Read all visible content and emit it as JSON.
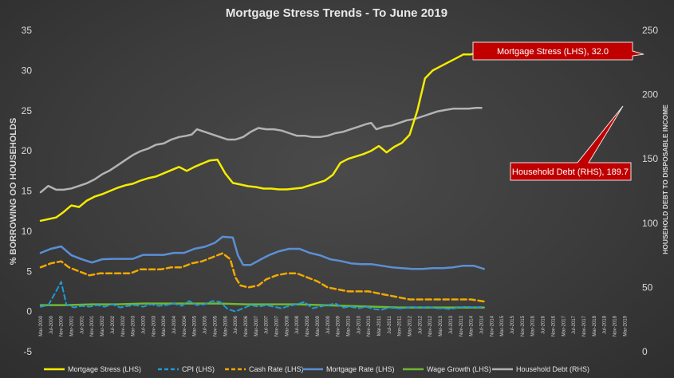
{
  "chart_data": {
    "type": "line",
    "title": "Mortgage Stress Trends - To June 2019",
    "ylabel": "% BORROWING OO HOUSEHOLDS",
    "y2label": "HOUSEHOLD DEBT TO DISPOSABLE INCOME",
    "ylim": [
      -5,
      35
    ],
    "yticks": [
      -5,
      0,
      5,
      10,
      15,
      20,
      25,
      30,
      35
    ],
    "y2lim": [
      0,
      250
    ],
    "y2ticks": [
      0,
      50,
      100,
      150,
      200,
      250
    ],
    "x_start": "Mar-2000",
    "x_end": "Jun-2019",
    "x_tick_labels": [
      "Mar-2000",
      "Jul-2000",
      "Nov-2000",
      "Mar-2001",
      "Jul-2001",
      "Nov-2001",
      "Mar-2002",
      "Jul-2002",
      "Nov-2002",
      "Mar-2003",
      "Jul-2003",
      "Nov-2003",
      "Mar-2004",
      "Jul-2004",
      "Nov-2004",
      "Mar-2005",
      "Jul-2005",
      "Nov-2005",
      "Mar-2006",
      "Jul-2006",
      "Nov-2006",
      "Mar-2007",
      "Jul-2007",
      "Nov-2007",
      "Mar-2008",
      "Jul-2008",
      "Nov-2008",
      "Mar-2009",
      "Jul-2009",
      "Nov-2009",
      "Mar-2010",
      "Jul-2010",
      "Nov-2010",
      "Mar-2011",
      "Jul-2011",
      "Nov-2011",
      "Mar-2012",
      "Jul-2012",
      "Nov-2012",
      "Mar-2013",
      "Jul-2013",
      "Nov-2013",
      "Mar-2014",
      "Jul-2014",
      "Nov-2014",
      "Mar-2015",
      "Jul-2015",
      "Nov-2015",
      "Mar-2016",
      "Jul-2016",
      "Nov-2016",
      "Mar-2017",
      "Jul-2017",
      "Nov-2017",
      "Mar-2018",
      "Jul-2018",
      "Nov-2018",
      "Mar-2019"
    ],
    "series": [
      {
        "name": "Mortgage Stress (LHS)",
        "axis": "left",
        "color": "#f5ec00",
        "dash": "solid",
        "width": 2.5,
        "points": [
          [
            0,
            11.3
          ],
          [
            3,
            11.5
          ],
          [
            6,
            11.7
          ],
          [
            9,
            12.4
          ],
          [
            12,
            13.2
          ],
          [
            15,
            13.0
          ],
          [
            18,
            13.8
          ],
          [
            21,
            14.3
          ],
          [
            24,
            14.6
          ],
          [
            27,
            15.0
          ],
          [
            30,
            15.4
          ],
          [
            33,
            15.7
          ],
          [
            36,
            15.9
          ],
          [
            39,
            16.3
          ],
          [
            42,
            16.6
          ],
          [
            45,
            16.8
          ],
          [
            48,
            17.2
          ],
          [
            51,
            17.6
          ],
          [
            54,
            18.0
          ],
          [
            57,
            17.5
          ],
          [
            60,
            18.0
          ],
          [
            63,
            18.4
          ],
          [
            66,
            18.8
          ],
          [
            69,
            18.9
          ],
          [
            72,
            17.2
          ],
          [
            75,
            16.0
          ],
          [
            78,
            15.8
          ],
          [
            81,
            15.6
          ],
          [
            84,
            15.5
          ],
          [
            87,
            15.3
          ],
          [
            90,
            15.3
          ],
          [
            93,
            15.2
          ],
          [
            96,
            15.2
          ],
          [
            99,
            15.3
          ],
          [
            102,
            15.4
          ],
          [
            105,
            15.7
          ],
          [
            108,
            16.0
          ],
          [
            111,
            16.3
          ],
          [
            114,
            17.0
          ],
          [
            117,
            18.5
          ],
          [
            120,
            19.0
          ],
          [
            123,
            19.3
          ],
          [
            126,
            19.6
          ],
          [
            129,
            20.0
          ],
          [
            132,
            20.6
          ],
          [
            135,
            19.8
          ],
          [
            138,
            20.5
          ],
          [
            141,
            21.0
          ],
          [
            144,
            22.0
          ],
          [
            147,
            25.0
          ],
          [
            150,
            29.0
          ],
          [
            153,
            30.0
          ],
          [
            156,
            30.5
          ],
          [
            159,
            31.0
          ],
          [
            162,
            31.5
          ],
          [
            165,
            32.0
          ],
          [
            168,
            32.0
          ],
          [
            171,
            32.3
          ],
          [
            173,
            32.0
          ]
        ]
      },
      {
        "name": "CPI (LHS)",
        "axis": "left",
        "color": "#1e9ad6",
        "dash": "6,4",
        "width": 2,
        "points": [
          [
            0,
            0.6
          ],
          [
            3,
            0.8
          ],
          [
            6,
            2.5
          ],
          [
            8,
            3.7
          ],
          [
            10,
            0.9
          ],
          [
            13,
            0.5
          ],
          [
            16,
            0.7
          ],
          [
            19,
            0.6
          ],
          [
            22,
            0.8
          ],
          [
            25,
            0.6
          ],
          [
            28,
            0.9
          ],
          [
            31,
            0.5
          ],
          [
            34,
            0.7
          ],
          [
            37,
            0.8
          ],
          [
            40,
            0.6
          ],
          [
            43,
            0.9
          ],
          [
            46,
            0.7
          ],
          [
            49,
            0.8
          ],
          [
            52,
            1.0
          ],
          [
            55,
            0.7
          ],
          [
            58,
            1.3
          ],
          [
            61,
            0.8
          ],
          [
            64,
            0.9
          ],
          [
            67,
            1.3
          ],
          [
            70,
            1.2
          ],
          [
            73,
            0.3
          ],
          [
            76,
            0.0
          ],
          [
            79,
            0.4
          ],
          [
            82,
            0.8
          ],
          [
            85,
            0.6
          ],
          [
            88,
            0.8
          ],
          [
            91,
            0.6
          ],
          [
            94,
            0.4
          ],
          [
            97,
            0.7
          ],
          [
            100,
            0.9
          ],
          [
            103,
            1.2
          ],
          [
            106,
            0.4
          ],
          [
            109,
            0.6
          ],
          [
            112,
            0.8
          ],
          [
            115,
            1.0
          ],
          [
            118,
            0.5
          ],
          [
            121,
            0.6
          ],
          [
            124,
            0.4
          ],
          [
            127,
            0.6
          ],
          [
            130,
            0.3
          ],
          [
            133,
            0.2
          ],
          [
            136,
            0.5
          ],
          [
            139,
            0.4
          ],
          [
            142,
            0.4
          ],
          [
            145,
            0.6
          ],
          [
            148,
            0.4
          ],
          [
            151,
            0.6
          ],
          [
            154,
            0.4
          ],
          [
            157,
            0.4
          ],
          [
            160,
            0.3
          ],
          [
            163,
            0.5
          ],
          [
            166,
            0.6
          ],
          [
            169,
            0.5
          ],
          [
            173,
            0.6
          ]
        ]
      },
      {
        "name": "Cash Rate (LHS)",
        "axis": "left",
        "color": "#f2a900",
        "dash": "7,4",
        "width": 2.5,
        "points": [
          [
            0,
            5.5
          ],
          [
            4,
            6.0
          ],
          [
            8,
            6.25
          ],
          [
            11,
            5.5
          ],
          [
            15,
            5.0
          ],
          [
            19,
            4.5
          ],
          [
            23,
            4.75
          ],
          [
            27,
            4.75
          ],
          [
            31,
            4.75
          ],
          [
            35,
            4.75
          ],
          [
            39,
            5.25
          ],
          [
            43,
            5.25
          ],
          [
            47,
            5.25
          ],
          [
            51,
            5.5
          ],
          [
            55,
            5.5
          ],
          [
            59,
            6.0
          ],
          [
            63,
            6.25
          ],
          [
            67,
            6.75
          ],
          [
            71,
            7.25
          ],
          [
            74,
            6.5
          ],
          [
            76,
            4.25
          ],
          [
            78,
            3.25
          ],
          [
            81,
            3.0
          ],
          [
            85,
            3.25
          ],
          [
            88,
            4.0
          ],
          [
            92,
            4.5
          ],
          [
            96,
            4.75
          ],
          [
            100,
            4.75
          ],
          [
            104,
            4.25
          ],
          [
            108,
            3.75
          ],
          [
            112,
            3.0
          ],
          [
            116,
            2.75
          ],
          [
            120,
            2.5
          ],
          [
            124,
            2.5
          ],
          [
            128,
            2.5
          ],
          [
            132,
            2.25
          ],
          [
            136,
            2.0
          ],
          [
            140,
            1.75
          ],
          [
            144,
            1.5
          ],
          [
            148,
            1.5
          ],
          [
            152,
            1.5
          ],
          [
            156,
            1.5
          ],
          [
            160,
            1.5
          ],
          [
            164,
            1.5
          ],
          [
            168,
            1.5
          ],
          [
            173,
            1.25
          ]
        ]
      },
      {
        "name": "Mortgage Rate (LHS)",
        "axis": "left",
        "color": "#5b8fd6",
        "dash": "solid",
        "width": 2.5,
        "points": [
          [
            0,
            7.3
          ],
          [
            4,
            7.8
          ],
          [
            8,
            8.1
          ],
          [
            12,
            7.0
          ],
          [
            16,
            6.5
          ],
          [
            20,
            6.1
          ],
          [
            24,
            6.5
          ],
          [
            28,
            6.55
          ],
          [
            32,
            6.55
          ],
          [
            36,
            6.55
          ],
          [
            40,
            7.05
          ],
          [
            44,
            7.05
          ],
          [
            48,
            7.05
          ],
          [
            52,
            7.3
          ],
          [
            56,
            7.3
          ],
          [
            60,
            7.8
          ],
          [
            64,
            8.05
          ],
          [
            68,
            8.55
          ],
          [
            71,
            9.3
          ],
          [
            75,
            9.2
          ],
          [
            77,
            7.0
          ],
          [
            79,
            5.8
          ],
          [
            82,
            5.8
          ],
          [
            86,
            6.5
          ],
          [
            89,
            7.0
          ],
          [
            93,
            7.5
          ],
          [
            97,
            7.8
          ],
          [
            101,
            7.8
          ],
          [
            105,
            7.3
          ],
          [
            109,
            7.0
          ],
          [
            113,
            6.5
          ],
          [
            117,
            6.3
          ],
          [
            121,
            6.0
          ],
          [
            125,
            5.9
          ],
          [
            129,
            5.9
          ],
          [
            133,
            5.7
          ],
          [
            137,
            5.5
          ],
          [
            141,
            5.4
          ],
          [
            145,
            5.3
          ],
          [
            149,
            5.3
          ],
          [
            153,
            5.4
          ],
          [
            157,
            5.4
          ],
          [
            161,
            5.5
          ],
          [
            165,
            5.7
          ],
          [
            169,
            5.7
          ],
          [
            173,
            5.3
          ]
        ]
      },
      {
        "name": "Wage Growth (LHS)",
        "axis": "left",
        "color": "#6fb832",
        "dash": "solid",
        "width": 2.5,
        "points": [
          [
            0,
            0.8
          ],
          [
            10,
            0.8
          ],
          [
            20,
            0.9
          ],
          [
            30,
            0.9
          ],
          [
            40,
            1.0
          ],
          [
            50,
            1.0
          ],
          [
            60,
            1.0
          ],
          [
            70,
            1.0
          ],
          [
            80,
            0.9
          ],
          [
            90,
            0.9
          ],
          [
            100,
            0.9
          ],
          [
            110,
            0.8
          ],
          [
            120,
            0.7
          ],
          [
            130,
            0.6
          ],
          [
            140,
            0.5
          ],
          [
            150,
            0.5
          ],
          [
            160,
            0.5
          ],
          [
            173,
            0.5
          ]
        ]
      },
      {
        "name": "Household Debt (RHS)",
        "axis": "right",
        "color": "#b3b3b3",
        "dash": "solid",
        "width": 2.5,
        "points": [
          [
            0,
            124
          ],
          [
            3,
            129
          ],
          [
            6,
            126
          ],
          [
            9,
            126
          ],
          [
            12,
            127
          ],
          [
            15,
            129
          ],
          [
            18,
            131
          ],
          [
            21,
            134
          ],
          [
            24,
            138
          ],
          [
            27,
            141
          ],
          [
            30,
            145
          ],
          [
            33,
            149
          ],
          [
            36,
            153
          ],
          [
            39,
            156
          ],
          [
            42,
            158
          ],
          [
            45,
            161
          ],
          [
            48,
            162
          ],
          [
            51,
            165
          ],
          [
            54,
            167
          ],
          [
            57,
            168
          ],
          [
            59,
            169
          ],
          [
            61,
            173
          ],
          [
            64,
            171
          ],
          [
            67,
            169
          ],
          [
            70,
            167
          ],
          [
            73,
            165
          ],
          [
            76,
            165
          ],
          [
            79,
            167
          ],
          [
            82,
            171
          ],
          [
            85,
            174
          ],
          [
            88,
            173
          ],
          [
            91,
            173
          ],
          [
            94,
            172
          ],
          [
            97,
            170
          ],
          [
            100,
            168
          ],
          [
            103,
            168
          ],
          [
            106,
            167
          ],
          [
            109,
            167
          ],
          [
            112,
            168
          ],
          [
            115,
            170
          ],
          [
            118,
            171
          ],
          [
            121,
            173
          ],
          [
            124,
            175
          ],
          [
            127,
            177
          ],
          [
            129,
            178
          ],
          [
            131,
            173
          ],
          [
            134,
            175
          ],
          [
            137,
            176
          ],
          [
            140,
            178
          ],
          [
            143,
            180
          ],
          [
            146,
            181
          ],
          [
            149,
            183
          ],
          [
            152,
            185
          ],
          [
            155,
            187
          ],
          [
            158,
            188
          ],
          [
            161,
            189
          ],
          [
            164,
            189
          ],
          [
            167,
            189
          ],
          [
            170,
            189.7
          ],
          [
            172,
            189.7
          ]
        ]
      }
    ],
    "annotations": [
      {
        "text": "Mortgage Stress (LHS), 32.0",
        "value": 32.0,
        "series": "Mortgage Stress (LHS)"
      },
      {
        "text": "Household Debt (RHS), 189.7",
        "value": 189.7,
        "series": "Household Debt (RHS)"
      }
    ]
  },
  "colors": {
    "background": "#3c3c3c",
    "callout": "#c00000"
  }
}
